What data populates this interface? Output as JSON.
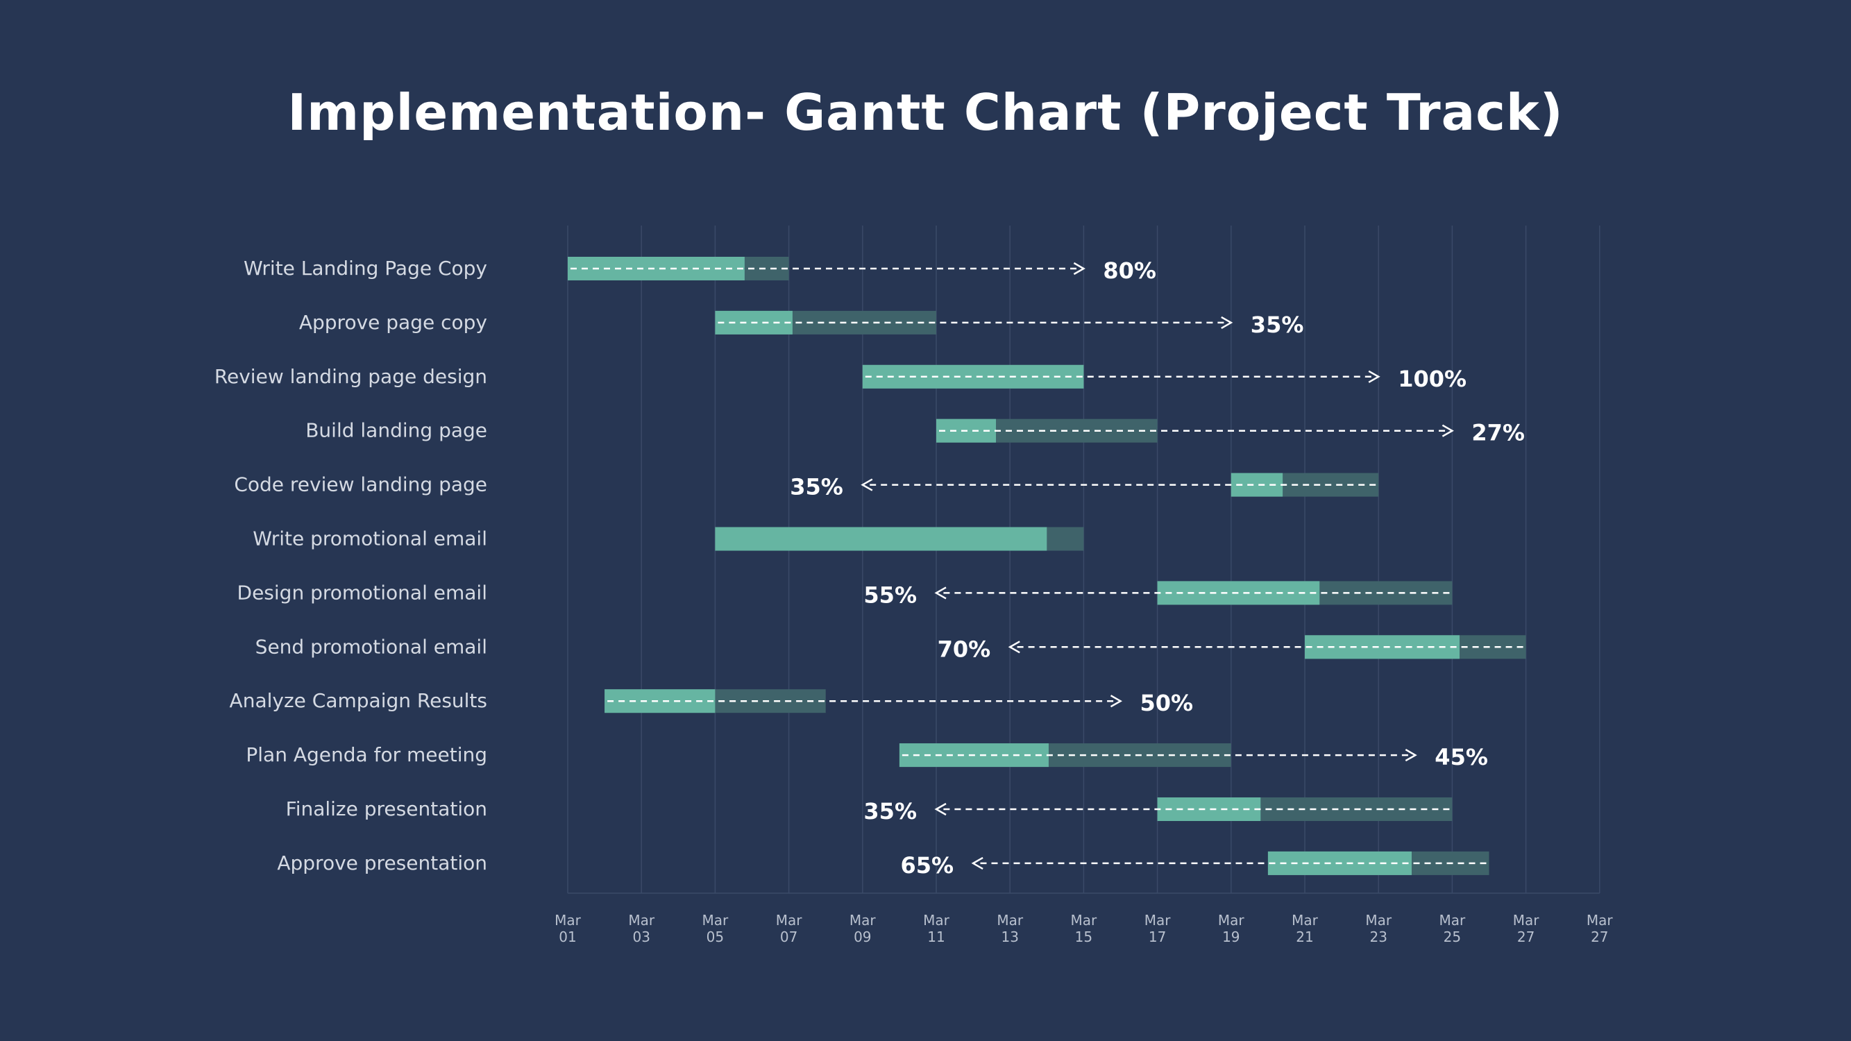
{
  "title": "Implementation- Gantt Chart (Project Track)",
  "colors": {
    "background": "#273653",
    "completed": "#66B5A2",
    "remaining": "#3F636A",
    "grid": "#3A4A68",
    "task_label": "#D5DAE3",
    "axis_label": "#B8C0CE",
    "percent_label": "#FFFFFF",
    "arrow": "#FFFFFF"
  },
  "chart_data": {
    "type": "gantt",
    "x_ticks": [
      {
        "month": "Mar",
        "day": "01"
      },
      {
        "month": "Mar",
        "day": "03"
      },
      {
        "month": "Mar",
        "day": "05"
      },
      {
        "month": "Mar",
        "day": "07"
      },
      {
        "month": "Mar",
        "day": "09"
      },
      {
        "month": "Mar",
        "day": "11"
      },
      {
        "month": "Mar",
        "day": "13"
      },
      {
        "month": "Mar",
        "day": "15"
      },
      {
        "month": "Mar",
        "day": "17"
      },
      {
        "month": "Mar",
        "day": "19"
      },
      {
        "month": "Mar",
        "day": "21"
      },
      {
        "month": "Mar",
        "day": "23"
      },
      {
        "month": "Mar",
        "day": "25"
      },
      {
        "month": "Mar",
        "day": "27"
      },
      {
        "month": "Mar",
        "day": "27"
      }
    ],
    "tasks": [
      {
        "name": "Write Landing Page Copy",
        "start": "Mar 01",
        "end": "Mar 07",
        "completion": 80,
        "label": "80%",
        "arrow_to": "Mar 15",
        "direction": "right"
      },
      {
        "name": "Approve page copy",
        "start": "Mar 05",
        "end": "Mar 11",
        "completion": 35,
        "label": "35%",
        "arrow_to": "Mar 19",
        "direction": "right"
      },
      {
        "name": "Review landing page design",
        "start": "Mar 09",
        "end": "Mar 15",
        "completion": 100,
        "label": "100%",
        "arrow_to": "Mar 23",
        "direction": "right"
      },
      {
        "name": "Build landing page",
        "start": "Mar 11",
        "end": "Mar 17",
        "completion": 27,
        "label": "27%",
        "arrow_to": "Mar 25",
        "direction": "right"
      },
      {
        "name": "Code review landing page",
        "start": "Mar 19",
        "end": "Mar 23",
        "completion": 35,
        "label": "35%",
        "arrow_to": "Mar 09",
        "direction": "left"
      },
      {
        "name": "Write promotional email",
        "start": "Mar 05",
        "end": "Mar 15",
        "completion": 90,
        "label": "",
        "arrow_to": null,
        "direction": "none"
      },
      {
        "name": "Design promotional email",
        "start": "Mar 17",
        "end": "Mar 25",
        "completion": 55,
        "label": "55%",
        "arrow_to": "Mar 11",
        "direction": "left"
      },
      {
        "name": "Send promotional email",
        "start": "Mar 21",
        "end": "Mar 27",
        "completion": 70,
        "label": "70%",
        "arrow_to": "Mar 13",
        "direction": "left"
      },
      {
        "name": "Analyze Campaign Results",
        "start": "Mar 02",
        "end": "Mar 08",
        "completion": 50,
        "label": "50%",
        "arrow_to": "Mar 16",
        "direction": "right"
      },
      {
        "name": "Plan Agenda for meeting",
        "start": "Mar 10",
        "end": "Mar 19",
        "completion": 45,
        "label": "45%",
        "arrow_to": "Mar 24",
        "direction": "right"
      },
      {
        "name": "Finalize presentation",
        "start": "Mar 17",
        "end": "Mar 25",
        "completion": 35,
        "label": "35%",
        "arrow_to": "Mar 11",
        "direction": "left"
      },
      {
        "name": "Approve presentation",
        "start": "Mar 20",
        "end": "Mar 26",
        "completion": 65,
        "label": "65%",
        "arrow_to": "Mar 12",
        "direction": "left"
      }
    ]
  }
}
